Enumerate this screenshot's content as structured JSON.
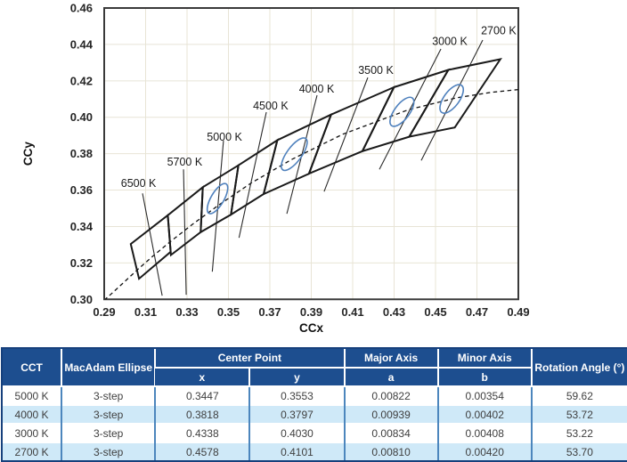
{
  "chart_data": {
    "type": "line",
    "title": "",
    "xlabel": "CCx",
    "ylabel": "CCy",
    "xlim": [
      0.29,
      0.49
    ],
    "ylim": [
      0.3,
      0.46
    ],
    "grid": true,
    "xticks": [
      "0.29",
      "0.31",
      "0.33",
      "0.35",
      "0.37",
      "0.39",
      "0.41",
      "0.43",
      "0.45",
      "0.47",
      "0.49"
    ],
    "yticks": [
      "0.46",
      "0.44",
      "0.42",
      "0.40",
      "0.38",
      "0.36",
      "0.34",
      "0.32",
      "0.30"
    ],
    "planckian_locus": [
      [
        0.29,
        0.2995
      ],
      [
        0.2952,
        0.3048
      ],
      [
        0.3064,
        0.3166
      ],
      [
        0.3135,
        0.3237
      ],
      [
        0.3221,
        0.3318
      ],
      [
        0.3324,
        0.341
      ],
      [
        0.3451,
        0.3516
      ],
      [
        0.3611,
        0.364
      ],
      [
        0.3805,
        0.3768
      ],
      [
        0.4053,
        0.3907
      ],
      [
        0.4369,
        0.4041
      ],
      [
        0.4599,
        0.4106
      ],
      [
        0.477,
        0.4137
      ],
      [
        0.49,
        0.4152
      ]
    ],
    "cct_bins": [
      {
        "label": "6500 K",
        "corners": [
          [
            0.3207,
            0.3462
          ],
          [
            0.3028,
            0.3304
          ],
          [
            0.3068,
            0.3113
          ],
          [
            0.3221,
            0.3261
          ]
        ]
      },
      {
        "label": "5700 K",
        "corners": [
          [
            0.3376,
            0.3616
          ],
          [
            0.3207,
            0.3462
          ],
          [
            0.3222,
            0.3243
          ],
          [
            0.3366,
            0.3369
          ]
        ]
      },
      {
        "label": "5000 K",
        "corners": [
          [
            0.3548,
            0.3736
          ],
          [
            0.3376,
            0.3616
          ],
          [
            0.3366,
            0.3369
          ],
          [
            0.3512,
            0.3465
          ]
        ]
      },
      {
        "label": "4500 K",
        "corners": [
          [
            0.3736,
            0.3874
          ],
          [
            0.3548,
            0.3736
          ],
          [
            0.3512,
            0.3465
          ],
          [
            0.367,
            0.3578
          ]
        ]
      },
      {
        "label": "4000 K",
        "corners": [
          [
            0.3996,
            0.4015
          ],
          [
            0.3736,
            0.3874
          ],
          [
            0.367,
            0.3578
          ],
          [
            0.3889,
            0.369
          ]
        ]
      },
      {
        "label": "3500 K",
        "corners": [
          [
            0.4299,
            0.4165
          ],
          [
            0.3996,
            0.4015
          ],
          [
            0.3889,
            0.369
          ],
          [
            0.4147,
            0.3814
          ]
        ]
      },
      {
        "label": "3000 K",
        "corners": [
          [
            0.4562,
            0.426
          ],
          [
            0.4299,
            0.4165
          ],
          [
            0.4147,
            0.3814
          ],
          [
            0.4373,
            0.3893
          ]
        ]
      },
      {
        "label": "2700 K",
        "corners": [
          [
            0.4813,
            0.4319
          ],
          [
            0.4562,
            0.426
          ],
          [
            0.4373,
            0.3893
          ],
          [
            0.4593,
            0.3944
          ]
        ]
      }
    ],
    "annotations": [
      {
        "label": "6500 K",
        "label_pos": [
          0.3066,
          0.3639
        ],
        "leader": [
          [
            0.3085,
            0.3582
          ],
          [
            0.318,
            0.302
          ]
        ]
      },
      {
        "label": "5700 K",
        "label_pos": [
          0.3289,
          0.3756
        ],
        "leader": [
          [
            0.3283,
            0.3714
          ],
          [
            0.3296,
            0.3025
          ]
        ]
      },
      {
        "label": "5000 K",
        "label_pos": [
          0.3481,
          0.3893
        ],
        "leader": [
          [
            0.3476,
            0.3871
          ],
          [
            0.3422,
            0.3152
          ]
        ]
      },
      {
        "label": "4500 K",
        "label_pos": [
          0.3704,
          0.4064
        ],
        "leader": [
          [
            0.3683,
            0.4028
          ],
          [
            0.3551,
            0.3338
          ]
        ]
      },
      {
        "label": "4000 K",
        "label_pos": [
          0.3926,
          0.4157
        ],
        "leader": [
          [
            0.3928,
            0.4121
          ],
          [
            0.3782,
            0.347
          ]
        ]
      },
      {
        "label": "3500 K",
        "label_pos": [
          0.4212,
          0.426
        ],
        "leader": [
          [
            0.4173,
            0.4218
          ],
          [
            0.3962,
            0.3592
          ]
        ]
      },
      {
        "label": "3000 K",
        "label_pos": [
          0.4569,
          0.4419
        ],
        "leader": [
          [
            0.4526,
            0.4375
          ],
          [
            0.4229,
            0.3714
          ]
        ]
      },
      {
        "label": "2700 K",
        "label_pos": [
          0.4805,
          0.4478
        ],
        "leader": [
          [
            0.4728,
            0.4424
          ],
          [
            0.4431,
            0.3763
          ]
        ]
      }
    ],
    "ellipses": [
      {
        "cct": "5000 K",
        "cx": 0.3447,
        "cy": 0.3553,
        "a": 0.00822,
        "b": 0.00354,
        "angle": 59.62
      },
      {
        "cct": "4000 K",
        "cx": 0.3818,
        "cy": 0.3797,
        "a": 0.00939,
        "b": 0.00402,
        "angle": 53.72
      },
      {
        "cct": "3000 K",
        "cx": 0.4338,
        "cy": 0.403,
        "a": 0.00834,
        "b": 0.00408,
        "angle": 53.22
      },
      {
        "cct": "2700 K",
        "cx": 0.4578,
        "cy": 0.4101,
        "a": 0.0081,
        "b": 0.0042,
        "angle": 53.7
      }
    ],
    "colors": {
      "grid": "#e8e4d6",
      "axis_border": "#3a3a3a",
      "bin_stroke": "#1a1a1a",
      "locus": "#111111",
      "leader": "#2b2b2b",
      "ellipse": "#4f81bd",
      "tick_text": "#262626"
    }
  },
  "table": {
    "header": {
      "cct": "CCT",
      "macadam": "MacAdam Ellipse",
      "center_point": "Center Point",
      "major_axis": "Major Axis",
      "minor_axis": "Minor Axis",
      "rotation": "Rotation Angle (°)",
      "sub_x": "x",
      "sub_y": "y",
      "sub_a": "a",
      "sub_b": "b"
    },
    "rows": [
      {
        "cct": "5000 K",
        "ellipse": "3-step",
        "x": "0.3447",
        "y": "0.3553",
        "a": "0.00822",
        "b": "0.00354",
        "rot": "59.62"
      },
      {
        "cct": "4000 K",
        "ellipse": "3-step",
        "x": "0.3818",
        "y": "0.3797",
        "a": "0.00939",
        "b": "0.00402",
        "rot": "53.72"
      },
      {
        "cct": "3000 K",
        "ellipse": "3-step",
        "x": "0.4338",
        "y": "0.4030",
        "a": "0.00834",
        "b": "0.00408",
        "rot": "53.22"
      },
      {
        "cct": "2700 K",
        "ellipse": "3-step",
        "x": "0.4578",
        "y": "0.4101",
        "a": "0.00810",
        "b": "0.00420",
        "rot": "53.70"
      }
    ],
    "colors": {
      "header_bg": "#1d4e8f",
      "header_text": "#ffffff",
      "row_alt": "#cfe9f8",
      "body_text": "#3f3f3f",
      "outer_border": "#16407c",
      "col_separator": "#4c86bd"
    }
  }
}
